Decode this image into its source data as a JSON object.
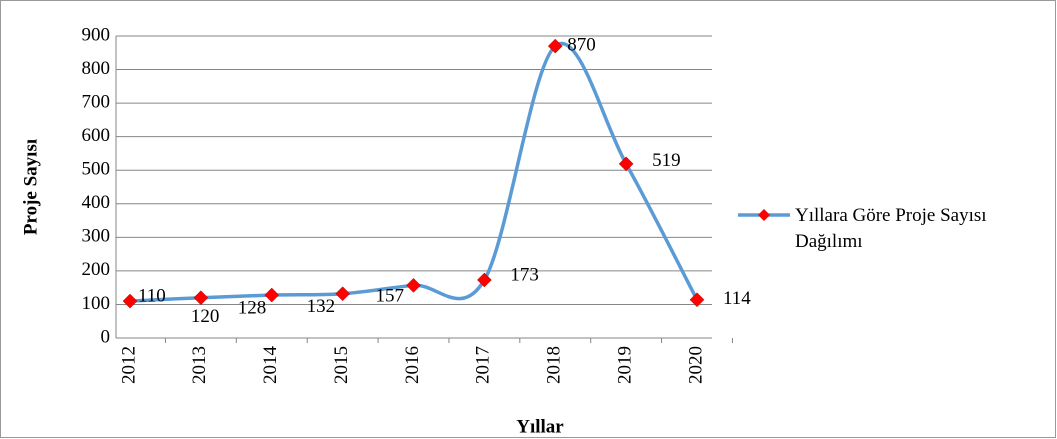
{
  "chart_data": {
    "type": "line",
    "categories": [
      "2012",
      "2013",
      "2014",
      "2015",
      "2016",
      "2017",
      "2018",
      "2019",
      "2020"
    ],
    "series": [
      {
        "name": "Yıllara Göre Proje Sayısı Dağılımı",
        "color": "#5b9bd5",
        "marker_color": "#ff0000",
        "values": [
          110,
          120,
          128,
          132,
          157,
          173,
          870,
          519,
          114
        ]
      }
    ],
    "xlabel": "Yıllar",
    "ylabel": "Proje Sayısı",
    "ylim": [
      0,
      900
    ],
    "yticks": [
      0,
      100,
      200,
      300,
      400,
      500,
      600,
      700,
      800,
      900
    ],
    "grid": true,
    "smooth": true,
    "legend": "right"
  }
}
